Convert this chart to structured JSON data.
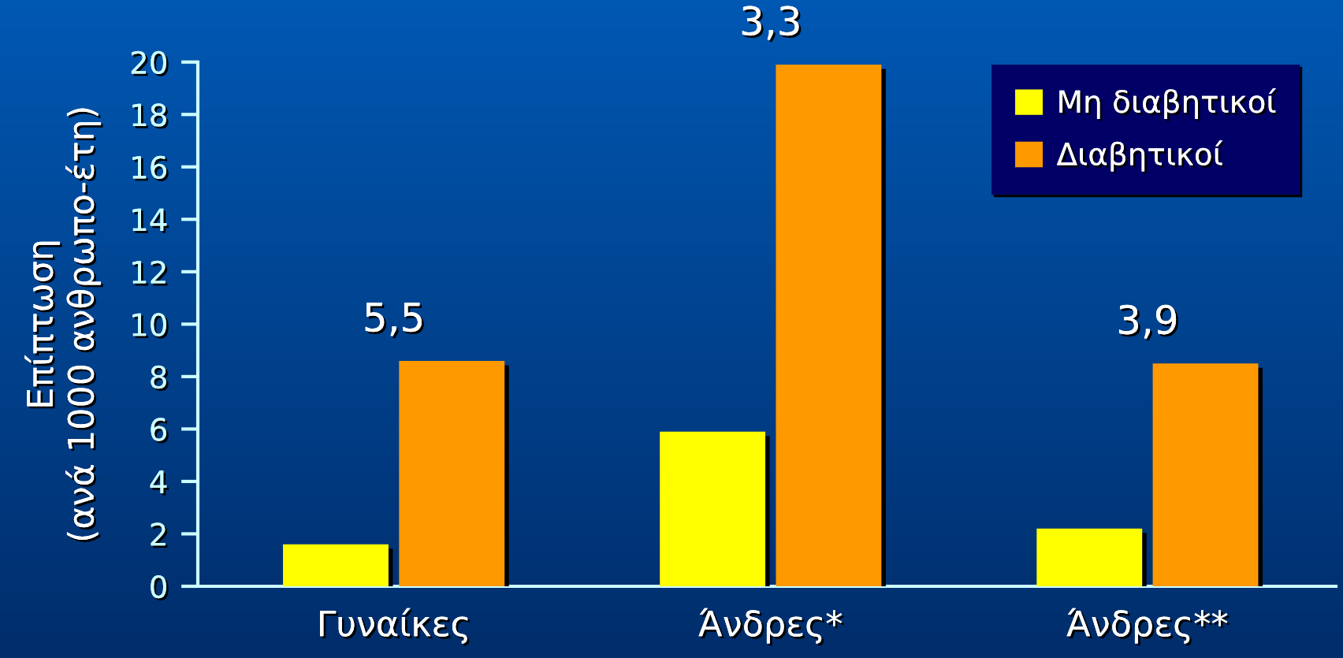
{
  "chart_data": {
    "type": "bar",
    "categories": [
      "Γυναίκες",
      "Άνδρες*",
      "Άνδρες**"
    ],
    "series": [
      {
        "name": "Μη διαβητικοί",
        "color": "#ffff00",
        "values": [
          1.6,
          5.9,
          2.2
        ]
      },
      {
        "name": "Διαβητικοί",
        "color": "#ff9900",
        "values": [
          8.6,
          19.9,
          8.5
        ]
      }
    ],
    "ylabel": "Επίπτωση\n(ανά 1000 ανθρωπο-έτη)",
    "ylim": [
      0,
      20
    ],
    "yticks": [
      0,
      2,
      4,
      6,
      8,
      10,
      12,
      14,
      16,
      18,
      20
    ],
    "annotations": [
      "5,5",
      "3,3",
      "3,9"
    ],
    "legend": "top right"
  }
}
